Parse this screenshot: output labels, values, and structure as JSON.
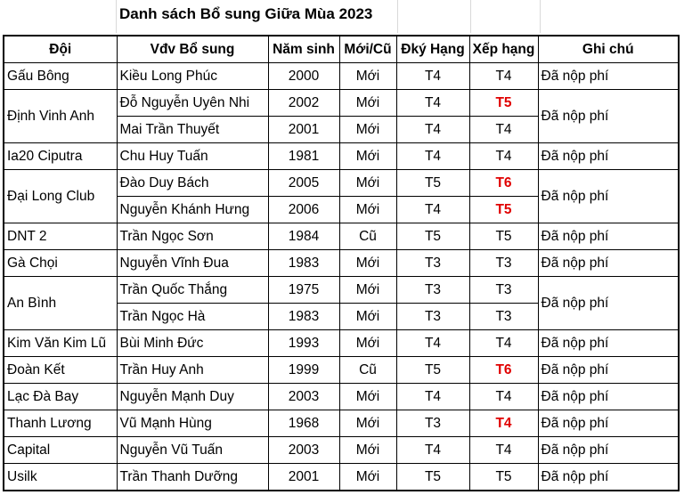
{
  "title": "Danh sách Bổ sung Giữa Mùa 2023",
  "headers": [
    "Đội",
    "Vđv Bổ sung",
    "Năm sinh",
    "Mới/Cũ",
    "Đký Hạng",
    "Xếp hạng",
    "Ghi chú"
  ],
  "rows": [
    {
      "team": "Gấu Bông",
      "player": "Kiều Long Phúc",
      "year": "2000",
      "status": "Mới",
      "reg": "T4",
      "rank": "T4",
      "note": "Đã nộp phí"
    },
    {
      "team": "Định Vinh Anh",
      "player": "Đỗ Nguyễn Uyên Nhi",
      "year": "2002",
      "status": "Mới",
      "reg": "T4",
      "rank": "T5",
      "note": "Đã nộp phí"
    },
    {
      "team": "",
      "player": "Mai Trần Thuyết",
      "year": "2001",
      "status": "Mới",
      "reg": "T4",
      "rank": "T4",
      "note": ""
    },
    {
      "team": "Ia20 Ciputra",
      "player": "Chu Huy Tuấn",
      "year": "1981",
      "status": "Mới",
      "reg": "T4",
      "rank": "T4",
      "note": "Đã nộp phí"
    },
    {
      "team": "Đại Long Club",
      "player": "Đào Duy Bách",
      "year": "2005",
      "status": "Mới",
      "reg": "T5",
      "rank": "T6",
      "note": "Đã nộp phí"
    },
    {
      "team": "",
      "player": "Nguyễn Khánh Hưng",
      "year": "2006",
      "status": "Mới",
      "reg": "T4",
      "rank": "T5",
      "note": ""
    },
    {
      "team": "DNT 2",
      "player": "Trần Ngọc Sơn",
      "year": "1984",
      "status": "Cũ",
      "reg": "T5",
      "rank": "T5",
      "note": "Đã nộp phí"
    },
    {
      "team": "Gà Chọi",
      "player": "Nguyễn Vĩnh Đua",
      "year": "1983",
      "status": "Mới",
      "reg": "T3",
      "rank": "T3",
      "note": "Đã nộp phí"
    },
    {
      "team": "An Bình",
      "player": "Trần Quốc Thắng",
      "year": "1975",
      "status": "Mới",
      "reg": "T3",
      "rank": "T3",
      "note": "Đã nộp phí"
    },
    {
      "team": "",
      "player": "Trần Ngọc Hà",
      "year": "1983",
      "status": "Mới",
      "reg": "T3",
      "rank": "T3",
      "note": ""
    },
    {
      "team": "Kim Văn Kim Lũ",
      "player": "Bùi Minh Đức",
      "year": "1993",
      "status": "Mới",
      "reg": "T4",
      "rank": "T4",
      "note": "Đã nộp phí"
    },
    {
      "team": "Đoàn Kết",
      "player": "Trần Huy Anh",
      "year": "1999",
      "status": "Cũ",
      "reg": "T5",
      "rank": "T6",
      "note": "Đã nộp phí"
    },
    {
      "team": "Lạc Đà Bay",
      "player": "Nguyễn Mạnh Duy",
      "year": "2003",
      "status": "Mới",
      "reg": "T4",
      "rank": "T4",
      "note": "Đã nộp phí"
    },
    {
      "team": "Thanh Lương",
      "player": "Vũ Mạnh Hùng",
      "year": "1968",
      "status": "Mới",
      "reg": "T3",
      "rank": "T4",
      "note": "Đã nộp phí"
    },
    {
      "team": "Capital",
      "player": "Nguyễn Vũ Tuấn",
      "year": "2003",
      "status": "Mới",
      "reg": "T4",
      "rank": "T4",
      "note": "Đã nộp phí"
    },
    {
      "team": "Usilk",
      "player": "Trần Thanh Dưỡng",
      "year": "2001",
      "status": "Mới",
      "reg": "T5",
      "rank": "T5",
      "note": "Đã nộp phí"
    }
  ],
  "colors": {
    "highlight": "#e00000",
    "border": "#000000"
  }
}
